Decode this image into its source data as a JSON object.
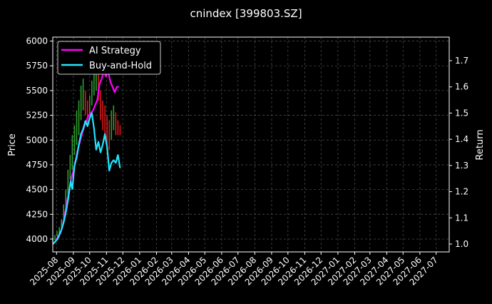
{
  "chart_data": {
    "type": "line",
    "title": "cnindex [399803.SZ]",
    "ylabel_left": "Price",
    "ylabel_right": "Return",
    "xlabel": "",
    "x_type": "date",
    "xlim": [
      "2025-07-25",
      "2027-07-25"
    ],
    "ylim_left": [
      3870,
      6040
    ],
    "ylim_right": [
      0.97,
      1.79
    ],
    "yticks_left": [
      4000,
      4250,
      4500,
      4750,
      5000,
      5250,
      5500,
      5750,
      6000
    ],
    "yticks_right": [
      1.0,
      1.1,
      1.2,
      1.3,
      1.4,
      1.5,
      1.6,
      1.7
    ],
    "xticks": [
      "2025-08",
      "2025-09",
      "2025-10",
      "2025-11",
      "2025-12",
      "2026-01",
      "2026-02",
      "2026-03",
      "2026-04",
      "2026-05",
      "2026-06",
      "2026-07",
      "2026-08",
      "2026-09",
      "2026-10",
      "2026-11",
      "2026-12",
      "2027-01",
      "2027-02",
      "2027-03",
      "2027-04",
      "2027-05",
      "2027-06",
      "2027-07"
    ],
    "grid": true,
    "legend_position": "top-left",
    "background": "#000000",
    "series": [
      {
        "name": "AI Strategy",
        "axis": "right",
        "color": "#ff00ff",
        "points": [
          [
            "2025-07-25",
            1.0
          ],
          [
            "2025-07-30",
            1.01
          ],
          [
            "2025-08-04",
            1.03
          ],
          [
            "2025-08-08",
            1.04
          ],
          [
            "2025-08-12",
            1.07
          ],
          [
            "2025-08-16",
            1.11
          ],
          [
            "2025-08-20",
            1.16
          ],
          [
            "2025-08-24",
            1.2
          ],
          [
            "2025-08-28",
            1.25
          ],
          [
            "2025-09-01",
            1.28
          ],
          [
            "2025-09-05",
            1.32
          ],
          [
            "2025-09-09",
            1.36
          ],
          [
            "2025-09-13",
            1.39
          ],
          [
            "2025-09-17",
            1.42
          ],
          [
            "2025-09-21",
            1.45
          ],
          [
            "2025-09-25",
            1.47
          ],
          [
            "2025-09-29",
            1.49
          ],
          [
            "2025-10-03",
            1.5
          ],
          [
            "2025-10-07",
            1.51
          ],
          [
            "2025-10-11",
            1.53
          ],
          [
            "2025-10-15",
            1.55
          ],
          [
            "2025-10-19",
            1.61
          ],
          [
            "2025-10-23",
            1.63
          ],
          [
            "2025-10-27",
            1.66
          ],
          [
            "2025-10-31",
            1.64
          ],
          [
            "2025-11-04",
            1.66
          ],
          [
            "2025-11-08",
            1.62
          ],
          [
            "2025-11-12",
            1.6
          ],
          [
            "2025-11-16",
            1.58
          ],
          [
            "2025-11-20",
            1.6
          ],
          [
            "2025-11-24",
            1.6
          ]
        ]
      },
      {
        "name": "Buy-and-Hold",
        "axis": "right",
        "color": "#22e5ff",
        "points": [
          [
            "2025-07-25",
            1.0
          ],
          [
            "2025-07-30",
            1.01
          ],
          [
            "2025-08-03",
            1.02
          ],
          [
            "2025-08-07",
            1.04
          ],
          [
            "2025-08-11",
            1.06
          ],
          [
            "2025-08-15",
            1.09
          ],
          [
            "2025-08-19",
            1.13
          ],
          [
            "2025-08-23",
            1.18
          ],
          [
            "2025-08-27",
            1.24
          ],
          [
            "2025-08-30",
            1.21
          ],
          [
            "2025-09-03",
            1.3
          ],
          [
            "2025-09-07",
            1.33
          ],
          [
            "2025-09-11",
            1.38
          ],
          [
            "2025-09-15",
            1.42
          ],
          [
            "2025-09-19",
            1.44
          ],
          [
            "2025-09-23",
            1.47
          ],
          [
            "2025-09-27",
            1.45
          ],
          [
            "2025-10-01",
            1.48
          ],
          [
            "2025-10-05",
            1.5
          ],
          [
            "2025-10-09",
            1.44
          ],
          [
            "2025-10-13",
            1.36
          ],
          [
            "2025-10-17",
            1.39
          ],
          [
            "2025-10-21",
            1.35
          ],
          [
            "2025-10-25",
            1.38
          ],
          [
            "2025-10-29",
            1.42
          ],
          [
            "2025-11-02",
            1.37
          ],
          [
            "2025-11-06",
            1.28
          ],
          [
            "2025-11-10",
            1.31
          ],
          [
            "2025-11-14",
            1.32
          ],
          [
            "2025-11-18",
            1.31
          ],
          [
            "2025-11-22",
            1.34
          ],
          [
            "2025-11-26",
            1.29
          ]
        ]
      }
    ],
    "price_bars": {
      "axis": "left",
      "up_color": "#2e9e2e",
      "down_color": "#e01818",
      "bars": [
        [
          "2025-07-25",
          3970,
          4010
        ],
        [
          "2025-07-29",
          3990,
          4040
        ],
        [
          "2025-08-02",
          4030,
          4080
        ],
        [
          "2025-08-06",
          4020,
          4120
        ],
        [
          "2025-08-10",
          4100,
          4200
        ],
        [
          "2025-08-14",
          4180,
          4350
        ],
        [
          "2025-08-18",
          4300,
          4500
        ],
        [
          "2025-08-22",
          4450,
          4700
        ],
        [
          "2025-08-26",
          4600,
          4850
        ],
        [
          "2025-08-30",
          4700,
          5050
        ],
        [
          "2025-09-03",
          4850,
          5150
        ],
        [
          "2025-09-07",
          4950,
          5300
        ],
        [
          "2025-09-11",
          5050,
          5400
        ],
        [
          "2025-09-15",
          5200,
          5550
        ],
        [
          "2025-09-19",
          5300,
          5620
        ],
        [
          "2025-09-23",
          5250,
          5500
        ],
        [
          "2025-09-27",
          5150,
          5400
        ],
        [
          "2025-10-01",
          5250,
          5450
        ],
        [
          "2025-10-05",
          5350,
          5600
        ],
        [
          "2025-10-09",
          5450,
          5750
        ],
        [
          "2025-10-13",
          5500,
          5950
        ],
        [
          "2025-10-17",
          5400,
          5800
        ],
        [
          "2025-10-21",
          5200,
          5500
        ],
        [
          "2025-10-25",
          5100,
          5400
        ],
        [
          "2025-10-29",
          5050,
          5350
        ],
        [
          "2025-11-02",
          4950,
          5250
        ],
        [
          "2025-11-06",
          4900,
          5200
        ],
        [
          "2025-11-10",
          5000,
          5300
        ],
        [
          "2025-11-14",
          5100,
          5350
        ],
        [
          "2025-11-18",
          5050,
          5280
        ],
        [
          "2025-11-22",
          5050,
          5200
        ],
        [
          "2025-11-26",
          5050,
          5150
        ]
      ]
    }
  }
}
